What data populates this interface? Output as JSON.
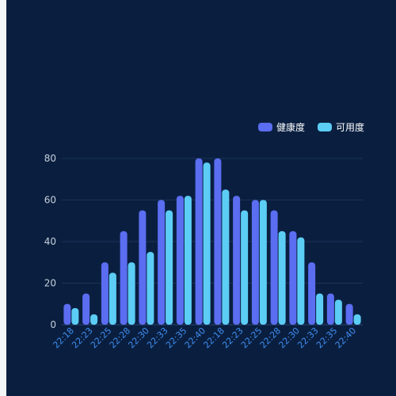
{
  "chart_data": {
    "type": "bar",
    "categories": [
      "22:18",
      "22:23",
      "22:25",
      "22:28",
      "22:30",
      "22:33",
      "22:35",
      "22:40",
      "22:18",
      "22:23",
      "22:25",
      "22:28",
      "22:30",
      "22:33",
      "22:35",
      "22:40"
    ],
    "series": [
      {
        "name": "健康度",
        "color": "#5b6df0",
        "values": [
          10,
          15,
          30,
          45,
          55,
          60,
          62,
          80,
          80,
          62,
          60,
          55,
          45,
          30,
          15,
          10
        ]
      },
      {
        "name": "可用度",
        "color": "#5ccdf5",
        "values": [
          8,
          5,
          25,
          30,
          35,
          55,
          62,
          78,
          65,
          55,
          60,
          45,
          42,
          15,
          12,
          5
        ]
      }
    ],
    "title": "",
    "xlabel": "",
    "ylabel": "",
    "ylim": [
      0,
      80
    ],
    "yticks": [
      0,
      20,
      40,
      60,
      80
    ],
    "grid": true,
    "legend_position": "top-right",
    "colors": {
      "background": "#0a1f40",
      "grid": "#1b3358",
      "axis_text": "#c6d0dc",
      "x_tick_text": "#3f8df0"
    }
  }
}
